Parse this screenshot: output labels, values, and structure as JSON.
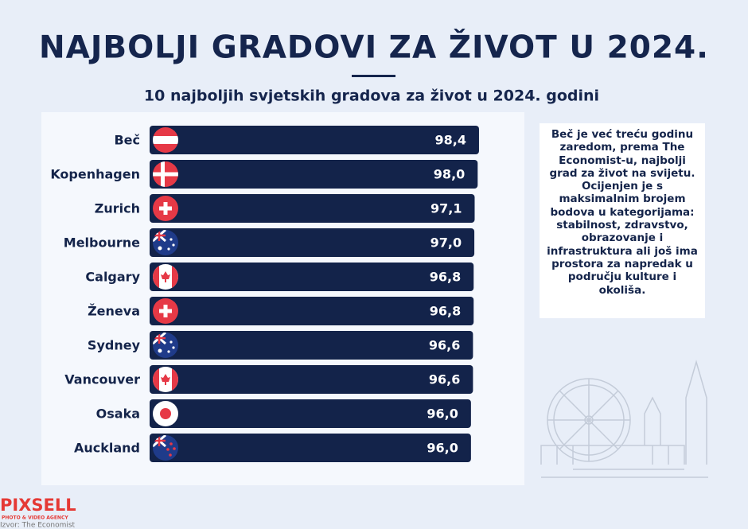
{
  "chart_data": {
    "type": "bar",
    "orientation": "horizontal",
    "title": "NAJBOLJI GRADOVI ZA ŽIVOT U 2024.",
    "subtitle": "10 najboljih svjetskih gradova za život u 2024. godini",
    "categories": [
      "Beč",
      "Kopenhagen",
      "Zurich",
      "Melbourne",
      "Calgary",
      "Ženeva",
      "Sydney",
      "Vancouver",
      "Osaka",
      "Auckland"
    ],
    "values": [
      98.4,
      98.0,
      97.1,
      97.0,
      96.8,
      96.8,
      96.6,
      96.6,
      96.0,
      96.0
    ],
    "value_labels": [
      "98,4",
      "98,0",
      "97,1",
      "97,0",
      "96,8",
      "96,8",
      "96,6",
      "96,6",
      "96,0",
      "96,0"
    ],
    "color": "#13234a",
    "xlim": [
      0,
      100
    ],
    "note": "Beč je već treću godinu zaredom, prema The Economist-u, najbolji grad za život na svijetu. Ocijenjen je s maksimalnim brojem bodova u kategorijama: stabilnost, zdravstvo, obrazovanje i infrastruktura ali još ima prostora za napredak u području kulture i okoliša."
  },
  "footer": {
    "logo": "PIXSELL",
    "logo_tagline": "PHOTO & VIDEO AGENCY",
    "source": "Izvor: The Economist"
  }
}
